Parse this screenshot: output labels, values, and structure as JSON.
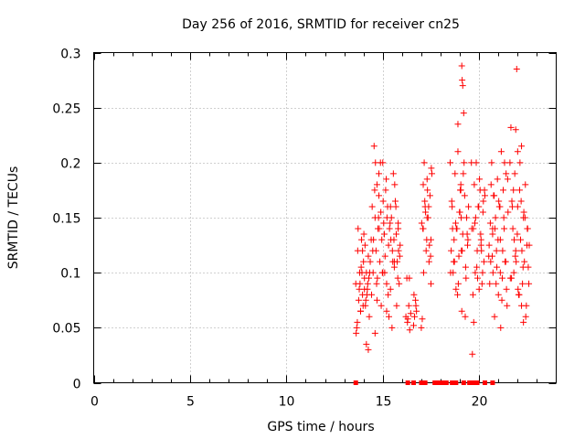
{
  "chart_data": {
    "type": "scatter",
    "title": "Day 256 of 2016, SRMTID for receiver cn25",
    "xlabel": "GPS time / hours",
    "ylabel": "SRMTID / TECUs",
    "xlim": [
      0,
      24
    ],
    "ylim": [
      0,
      0.3
    ],
    "xticks": [
      0,
      5,
      10,
      15,
      20
    ],
    "xtick_labels": [
      "0",
      "5",
      "10",
      "15",
      "20"
    ],
    "yticks": [
      0,
      0.05,
      0.1,
      0.15,
      0.2,
      0.25,
      0.3
    ],
    "ytick_labels": [
      "0",
      "0.05",
      "0.1",
      "0.15",
      "0.2",
      "0.25",
      "0.3"
    ],
    "grid": true,
    "marker": "plus",
    "series_color": "#ff0000",
    "zero_points": {
      "marker": "square",
      "x": [
        13.6,
        16.3,
        16.6,
        17.0,
        17.2,
        17.7,
        17.9,
        18.1,
        18.3,
        18.6,
        18.8,
        19.2,
        19.5,
        19.7,
        19.9,
        20.3,
        20.7
      ]
    },
    "series": [
      {
        "name": "SRMTID",
        "x": [
          13.6,
          13.7,
          13.75,
          13.8,
          13.85,
          13.9,
          13.95,
          14.0,
          14.05,
          14.1,
          14.15,
          14.2,
          14.25,
          14.3,
          13.65,
          13.72,
          13.82,
          13.88,
          13.98,
          14.08,
          14.18,
          14.28,
          14.35,
          13.62,
          13.78,
          13.92,
          14.02,
          14.12,
          14.22,
          14.32,
          13.68,
          13.85,
          13.95,
          14.05,
          14.15,
          14.25,
          14.4,
          14.45,
          14.5,
          14.55,
          14.6,
          14.65,
          14.7,
          14.75,
          14.8,
          14.85,
          14.9,
          14.95,
          15.0,
          15.05,
          15.1,
          15.15,
          15.2,
          15.25,
          15.3,
          15.35,
          15.4,
          15.45,
          15.5,
          15.55,
          15.6,
          15.65,
          15.7,
          15.75,
          15.8,
          15.85,
          15.9,
          14.42,
          14.52,
          14.62,
          14.72,
          14.82,
          14.92,
          15.02,
          15.12,
          15.22,
          15.32,
          15.42,
          15.52,
          15.62,
          15.72,
          15.82,
          14.48,
          14.58,
          14.68,
          14.78,
          14.88,
          14.98,
          15.08,
          15.18,
          15.28,
          15.38,
          15.48,
          15.58,
          15.68,
          15.78,
          15.88,
          14.6,
          14.7,
          14.8,
          15.0,
          15.2,
          15.4,
          15.6,
          15.8,
          16.2,
          16.25,
          16.3,
          16.35,
          16.4,
          16.45,
          16.28,
          16.38,
          16.6,
          16.65,
          16.7,
          16.75,
          16.62,
          16.72,
          17.0,
          17.05,
          17.1,
          17.15,
          17.2,
          17.25,
          17.3,
          17.35,
          17.4,
          17.45,
          17.5,
          17.55,
          17.02,
          17.12,
          17.22,
          17.32,
          17.42,
          17.52,
          17.08,
          17.18,
          17.28,
          17.38,
          17.48,
          17.1,
          17.3,
          17.5,
          18.5,
          18.55,
          18.6,
          18.65,
          18.7,
          18.75,
          18.8,
          18.85,
          18.9,
          18.95,
          19.0,
          19.05,
          19.1,
          19.15,
          19.2,
          19.25,
          19.3,
          19.35,
          19.4,
          19.45,
          18.52,
          18.62,
          18.72,
          18.82,
          18.92,
          19.02,
          19.12,
          19.22,
          19.32,
          19.42,
          18.58,
          18.68,
          18.78,
          18.88,
          18.98,
          19.08,
          19.18,
          19.28,
          19.38,
          19.05,
          19.07,
          19.1,
          19.12,
          19.15,
          18.9,
          19.6,
          19.65,
          19.7,
          19.75,
          19.8,
          19.85,
          19.9,
          19.95,
          20.0,
          20.05,
          20.1,
          20.15,
          20.2,
          20.25,
          20.3,
          19.62,
          19.72,
          19.82,
          19.92,
          20.02,
          20.12,
          20.22,
          19.68,
          19.78,
          19.88,
          19.98,
          20.08,
          20.18,
          20.28,
          20.1,
          20.5,
          20.55,
          20.6,
          20.65,
          20.7,
          20.75,
          20.8,
          20.85,
          20.9,
          20.95,
          21.0,
          21.05,
          21.1,
          21.15,
          21.2,
          21.25,
          21.3,
          21.35,
          21.4,
          21.45,
          21.5,
          20.52,
          20.62,
          20.72,
          20.82,
          20.92,
          21.02,
          21.12,
          21.22,
          21.32,
          21.42,
          20.58,
          20.68,
          20.78,
          20.88,
          20.98,
          21.08,
          21.18,
          21.28,
          21.38,
          21.48,
          21.1,
          20.7,
          21.6,
          21.65,
          21.7,
          21.75,
          21.8,
          21.85,
          21.9,
          21.95,
          22.0,
          22.05,
          22.1,
          22.15,
          22.2,
          22.25,
          22.3,
          22.35,
          22.4,
          22.45,
          22.5,
          22.55,
          22.6,
          21.62,
          21.72,
          21.82,
          21.92,
          22.02,
          22.12,
          22.22,
          22.32,
          22.42,
          22.52,
          21.68,
          21.78,
          21.88,
          21.98,
          22.08,
          22.18,
          22.28,
          22.38,
          22.48,
          22.58,
          21.9,
          22.0,
          22.3,
          22.2
        ],
        "y": [
          0.09,
          0.12,
          0.075,
          0.1,
          0.065,
          0.13,
          0.08,
          0.11,
          0.095,
          0.07,
          0.1,
          0.085,
          0.115,
          0.06,
          0.05,
          0.14,
          0.09,
          0.105,
          0.07,
          0.125,
          0.08,
          0.095,
          0.11,
          0.045,
          0.085,
          0.1,
          0.135,
          0.075,
          0.09,
          0.1,
          0.055,
          0.065,
          0.12,
          0.085,
          0.035,
          0.03,
          0.13,
          0.16,
          0.1,
          0.215,
          0.15,
          0.12,
          0.18,
          0.14,
          0.17,
          0.11,
          0.155,
          0.13,
          0.2,
          0.145,
          0.1,
          0.175,
          0.09,
          0.16,
          0.125,
          0.14,
          0.085,
          0.15,
          0.12,
          0.19,
          0.105,
          0.165,
          0.135,
          0.11,
          0.145,
          0.09,
          0.125,
          0.08,
          0.13,
          0.2,
          0.095,
          0.14,
          0.07,
          0.165,
          0.115,
          0.15,
          0.06,
          0.13,
          0.11,
          0.18,
          0.07,
          0.12,
          0.12,
          0.175,
          0.09,
          0.15,
          0.2,
          0.1,
          0.135,
          0.185,
          0.08,
          0.145,
          0.05,
          0.13,
          0.16,
          0.095,
          0.115,
          0.045,
          0.075,
          0.19,
          0.1,
          0.065,
          0.16,
          0.11,
          0.14,
          0.06,
          0.095,
          0.058,
          0.07,
          0.048,
          0.063,
          0.055,
          0.095,
          0.052,
          0.06,
          0.075,
          0.065,
          0.08,
          0.07,
          0.05,
          0.058,
          0.14,
          0.2,
          0.16,
          0.12,
          0.185,
          0.15,
          0.11,
          0.17,
          0.13,
          0.19,
          0.145,
          0.1,
          0.155,
          0.175,
          0.125,
          0.195,
          0.14,
          0.165,
          0.13,
          0.16,
          0.115,
          0.18,
          0.15,
          0.09,
          0.2,
          0.12,
          0.16,
          0.1,
          0.13,
          0.19,
          0.085,
          0.14,
          0.21,
          0.115,
          0.155,
          0.18,
          0.065,
          0.135,
          0.245,
          0.17,
          0.105,
          0.15,
          0.125,
          0.16,
          0.1,
          0.14,
          0.11,
          0.14,
          0.09,
          0.175,
          0.12,
          0.2,
          0.095,
          0.13,
          0.165,
          0.11,
          0.145,
          0.08,
          0.155,
          0.12,
          0.19,
          0.06,
          0.135,
          0.175,
          0.15,
          0.288,
          0.275,
          0.27,
          0.235,
          0.2,
          0.026,
          0.14,
          0.18,
          0.1,
          0.2,
          0.12,
          0.16,
          0.085,
          0.175,
          0.13,
          0.09,
          0.155,
          0.11,
          0.17,
          0.14,
          0.055,
          0.15,
          0.095,
          0.185,
          0.12,
          0.165,
          0.08,
          0.145,
          0.105,
          0.16,
          0.135,
          0.1,
          0.175,
          0.125,
          0.115,
          0.09,
          0.11,
          0.2,
          0.14,
          0.17,
          0.06,
          0.15,
          0.12,
          0.185,
          0.08,
          0.16,
          0.13,
          0.21,
          0.095,
          0.175,
          0.14,
          0.11,
          0.19,
          0.07,
          0.155,
          0.125,
          0.18,
          0.1,
          0.14,
          0.105,
          0.165,
          0.05,
          0.12,
          0.2,
          0.085,
          0.145,
          0.115,
          0.17,
          0.09,
          0.13,
          0.16,
          0.075,
          0.15,
          0.11,
          0.185,
          0.1,
          0.135,
          0.2,
          0.232,
          0.165,
          0.14,
          0.1,
          0.19,
          0.12,
          0.285,
          0.16,
          0.08,
          0.175,
          0.13,
          0.215,
          0.09,
          0.15,
          0.11,
          0.18,
          0.07,
          0.14,
          0.105,
          0.125,
          0.095,
          0.16,
          0.13,
          0.11,
          0.085,
          0.2,
          0.12,
          0.155,
          0.06,
          0.14,
          0.095,
          0.175,
          0.115,
          0.135,
          0.08,
          0.165,
          0.105,
          0.15,
          0.125,
          0.09,
          0.23,
          0.21,
          0.055,
          0.07
        ]
      }
    ]
  }
}
